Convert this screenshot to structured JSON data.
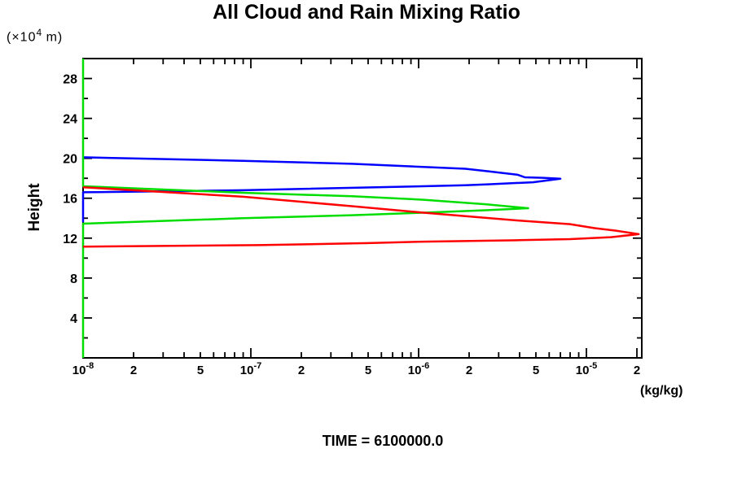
{
  "page": {
    "title": "All Cloud and Rain Mixing Ratio",
    "y_axis_units": {
      "prefix": "(×10",
      "superscript": "4",
      "suffix": " m)"
    },
    "y_axis_label": "Height",
    "x_axis_units": "(kg/kg)",
    "time_caption": "TIME = 6100000.0"
  },
  "chart_data": {
    "type": "line",
    "title": "All Cloud and Rain Mixing Ratio",
    "xlabel": "(kg/kg)",
    "ylabel": "Height (×10^4 m)",
    "x_scale": "log",
    "xlim": [
      1e-08,
      2.15e-05
    ],
    "ylim": [
      0,
      30
    ],
    "grid": false,
    "legend": null,
    "caption": "TIME = 6100000.0",
    "axis_color": "#000000",
    "y_major_ticks": [
      4,
      8,
      12,
      16,
      20,
      24,
      28
    ],
    "y_minor_ticks": [
      2,
      6,
      10,
      14,
      18,
      22,
      26,
      30
    ],
    "x_tick_labels": [
      {
        "v": 1e-08,
        "base": "10",
        "exp": "-8"
      },
      {
        "v": 2e-08,
        "text": "2"
      },
      {
        "v": 5e-08,
        "text": "5"
      },
      {
        "v": 1e-07,
        "base": "10",
        "exp": "-7"
      },
      {
        "v": 2e-07,
        "text": "2"
      },
      {
        "v": 5e-07,
        "text": "5"
      },
      {
        "v": 1e-06,
        "base": "10",
        "exp": "-6"
      },
      {
        "v": 2e-06,
        "text": "2"
      },
      {
        "v": 5e-06,
        "text": "5"
      },
      {
        "v": 1e-05,
        "base": "10",
        "exp": "-5"
      },
      {
        "v": 2e-05,
        "text": "2"
      }
    ],
    "series": [
      {
        "name": "blue-series",
        "color": "#0000ff",
        "points": [
          [
            1e-08,
            20.1
          ],
          [
            9e-08,
            19.75
          ],
          [
            4e-07,
            19.45
          ],
          [
            1.9e-06,
            18.95
          ],
          [
            2.6e-06,
            18.7
          ],
          [
            3.9e-06,
            18.35
          ],
          [
            4.3e-06,
            18.1
          ],
          [
            5.5e-06,
            18.05
          ],
          [
            7e-06,
            17.95
          ],
          [
            4.8e-06,
            17.6
          ],
          [
            2.6e-06,
            17.4
          ],
          [
            1.9e-06,
            17.3
          ],
          [
            9e-08,
            16.8
          ],
          [
            1e-08,
            16.6
          ],
          [
            1e-08,
            13.6
          ]
        ]
      },
      {
        "name": "green-series",
        "color": "#00dd00",
        "points": [
          [
            1e-08,
            0.0
          ],
          [
            1e-08,
            13.45
          ],
          [
            9e-08,
            14.0
          ],
          [
            4e-07,
            14.3
          ],
          [
            1.07e-06,
            14.55
          ],
          [
            2.5e-06,
            14.8
          ],
          [
            4.5e-06,
            15.0
          ],
          [
            2.5e-06,
            15.4
          ],
          [
            1.07e-06,
            15.85
          ],
          [
            4e-07,
            16.2
          ],
          [
            9e-08,
            16.55
          ],
          [
            1e-08,
            17.2
          ],
          [
            1e-08,
            30.0
          ]
        ]
      },
      {
        "name": "red-series",
        "color": "#ff0000",
        "points": [
          [
            1e-08,
            11.15
          ],
          [
            1.1e-07,
            11.3
          ],
          [
            5e-07,
            11.5
          ],
          [
            1.07e-06,
            11.65
          ],
          [
            4e-06,
            11.8
          ],
          [
            8e-06,
            11.9
          ],
          [
            1.4e-05,
            12.1
          ],
          [
            2.05e-05,
            12.4
          ],
          [
            1.5e-05,
            12.75
          ],
          [
            1.12e-05,
            13.0
          ],
          [
            8e-06,
            13.4
          ],
          [
            4e-06,
            13.75
          ],
          [
            1.9e-06,
            14.2
          ],
          [
            1.07e-06,
            14.55
          ],
          [
            4e-07,
            15.2
          ],
          [
            9e-08,
            16.15
          ],
          [
            1e-08,
            17.1
          ]
        ]
      }
    ]
  }
}
